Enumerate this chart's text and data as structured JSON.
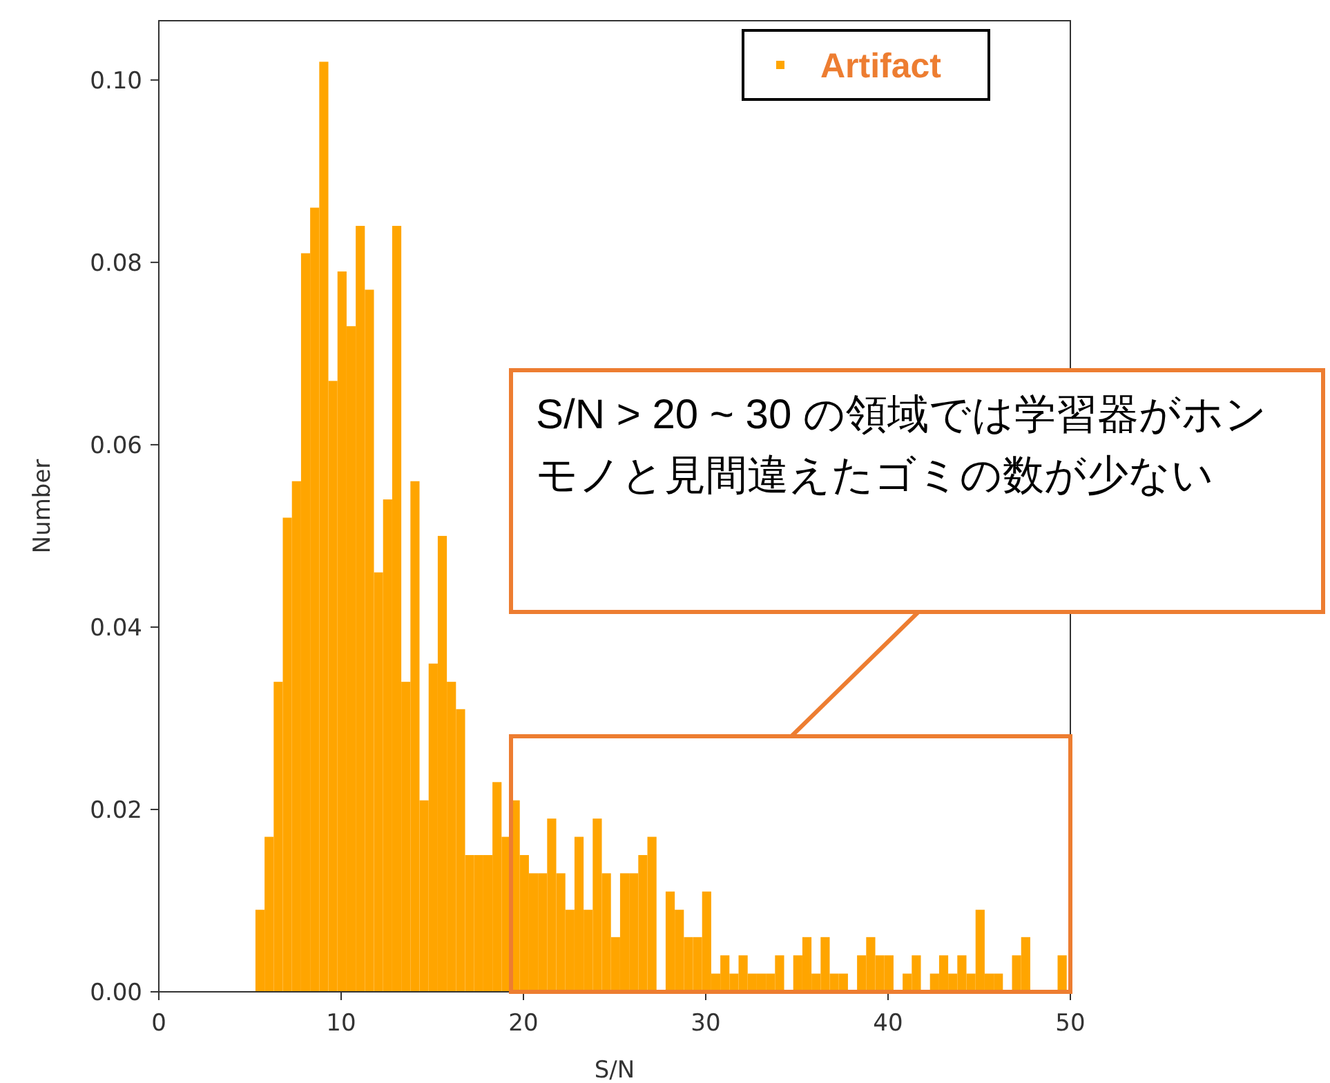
{
  "chart_data": {
    "type": "histogram",
    "xlabel": "S/N",
    "ylabel": "Number",
    "bins": [
      5.3,
      5.8,
      6.3,
      6.8,
      7.3,
      7.8,
      8.3,
      8.8,
      9.3,
      9.8,
      10.3,
      10.8,
      11.3,
      11.8,
      12.3,
      12.8,
      13.3,
      13.8,
      14.3,
      14.8,
      15.3,
      15.8,
      16.3,
      16.8,
      17.3,
      17.8,
      18.3,
      18.8,
      19.3,
      19.8,
      20.3,
      20.8,
      21.3,
      21.8,
      22.3,
      22.8,
      23.3,
      23.8,
      24.3,
      24.8,
      25.3,
      25.8,
      26.3,
      26.8,
      27.3,
      27.8,
      28.3,
      28.8,
      29.3,
      29.8,
      30.3,
      30.8,
      31.3,
      31.8,
      32.3,
      32.8,
      33.3,
      33.8,
      34.3,
      34.8,
      35.3,
      35.8,
      36.3,
      36.8,
      37.3,
      37.8,
      38.3,
      38.8,
      39.3,
      39.8,
      40.3,
      40.8,
      41.3,
      41.8,
      42.3,
      42.8,
      43.3,
      43.8,
      44.3,
      44.8,
      45.3,
      45.8,
      46.3,
      46.8,
      47.3,
      47.8,
      48.3,
      48.8,
      49.3,
      49.8
    ],
    "series": [
      {
        "name": "Artifact",
        "color": "#ffa500",
        "values": [
          0.009,
          0.017,
          0.034,
          0.052,
          0.056,
          0.081,
          0.086,
          0.102,
          0.067,
          0.079,
          0.073,
          0.084,
          0.077,
          0.046,
          0.054,
          0.084,
          0.034,
          0.056,
          0.021,
          0.036,
          0.05,
          0.034,
          0.031,
          0.015,
          0.015,
          0.015,
          0.023,
          0.017,
          0.021,
          0.015,
          0.013,
          0.013,
          0.019,
          0.013,
          0.009,
          0.017,
          0.009,
          0.019,
          0.013,
          0.006,
          0.013,
          0.013,
          0.015,
          0.017,
          0,
          0.011,
          0.009,
          0.006,
          0.006,
          0.011,
          0.002,
          0.004,
          0.002,
          0.004,
          0.002,
          0.002,
          0.002,
          0.004,
          0,
          0.004,
          0.006,
          0.002,
          0.006,
          0.002,
          0.002,
          0,
          0.004,
          0.006,
          0.004,
          0.004,
          0,
          0.002,
          0.004,
          0,
          0.002,
          0.004,
          0.002,
          0.004,
          0.002,
          0.009,
          0.002,
          0.002,
          0,
          0.004,
          0.006,
          0,
          0,
          0,
          0.004
        ]
      }
    ],
    "xlim": [
      0,
      50
    ],
    "ylim": [
      0,
      0.1065
    ],
    "xticks": [
      0,
      10,
      20,
      30,
      40,
      50
    ],
    "yticks": [
      {
        "value": 0,
        "label": "0.00"
      },
      {
        "value": 0.02,
        "label": "0.02"
      },
      {
        "value": 0.04,
        "label": "0.04"
      },
      {
        "value": 0.06,
        "label": "0.06"
      },
      {
        "value": 0.08,
        "label": "0.08"
      },
      {
        "value": 0.1,
        "label": "0.10"
      }
    ],
    "legend": "top right",
    "grid": false,
    "annotations": [
      "S/N > 20 ~ 30 の領域では学習器がホンモノと見間違えたゴミの数が少ない"
    ]
  }
}
